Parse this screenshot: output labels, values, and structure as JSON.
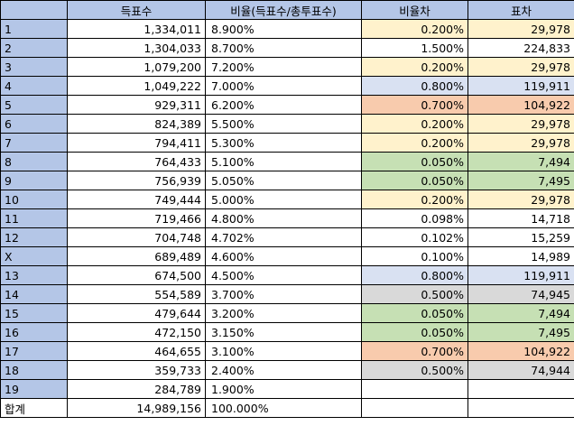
{
  "headers": [
    "",
    "득표수",
    "비율(득표수/총투표수)",
    "비율차",
    "표차"
  ],
  "colors": {
    "header": "#b4c6e7",
    "yellow": "#fff2cc",
    "blue": "#d9e1f2",
    "orange": "#f8cbad",
    "green": "#c6e0b4",
    "gray": "#d9d9d9"
  },
  "rows": [
    {
      "label": "1",
      "votes": "1,334,011",
      "ratio": "8.900%",
      "diff": "0.200%",
      "gap": "29,978",
      "color": "yellow"
    },
    {
      "label": "2",
      "votes": "1,304,033",
      "ratio": "8.700%",
      "diff": "1.500%",
      "gap": "224,833",
      "color": "none"
    },
    {
      "label": "3",
      "votes": "1,079,200",
      "ratio": "7.200%",
      "diff": "0.200%",
      "gap": "29,978",
      "color": "yellow"
    },
    {
      "label": "4",
      "votes": "1,049,222",
      "ratio": "7.000%",
      "diff": "0.800%",
      "gap": "119,911",
      "color": "blue"
    },
    {
      "label": "5",
      "votes": "929,311",
      "ratio": "6.200%",
      "diff": "0.700%",
      "gap": "104,922",
      "color": "orange"
    },
    {
      "label": "6",
      "votes": "824,389",
      "ratio": "5.500%",
      "diff": "0.200%",
      "gap": "29,978",
      "color": "yellow"
    },
    {
      "label": "7",
      "votes": "794,411",
      "ratio": "5.300%",
      "diff": "0.200%",
      "gap": "29,978",
      "color": "yellow"
    },
    {
      "label": "8",
      "votes": "764,433",
      "ratio": "5.100%",
      "diff": "0.050%",
      "gap": "7,494",
      "color": "green"
    },
    {
      "label": "9",
      "votes": "756,939",
      "ratio": "5.050%",
      "diff": "0.050%",
      "gap": "7,495",
      "color": "green"
    },
    {
      "label": "10",
      "votes": "749,444",
      "ratio": "5.000%",
      "diff": "0.200%",
      "gap": "29,978",
      "color": "yellow"
    },
    {
      "label": "11",
      "votes": "719,466",
      "ratio": "4.800%",
      "diff": "0.098%",
      "gap": "14,718",
      "color": "none"
    },
    {
      "label": "12",
      "votes": "704,748",
      "ratio": "4.702%",
      "diff": "0.102%",
      "gap": "15,259",
      "color": "none"
    },
    {
      "label": "X",
      "votes": "689,489",
      "ratio": "4.600%",
      "diff": "0.100%",
      "gap": "14,989",
      "color": "none"
    },
    {
      "label": "13",
      "votes": "674,500",
      "ratio": "4.500%",
      "diff": "0.800%",
      "gap": "119,911",
      "color": "blue"
    },
    {
      "label": "14",
      "votes": "554,589",
      "ratio": "3.700%",
      "diff": "0.500%",
      "gap": "74,945",
      "color": "gray"
    },
    {
      "label": "15",
      "votes": "479,644",
      "ratio": "3.200%",
      "diff": "0.050%",
      "gap": "7,494",
      "color": "green"
    },
    {
      "label": "16",
      "votes": "472,150",
      "ratio": "3.150%",
      "diff": "0.050%",
      "gap": "7,495",
      "color": "green"
    },
    {
      "label": "17",
      "votes": "464,655",
      "ratio": "3.100%",
      "diff": "0.700%",
      "gap": "104,922",
      "color": "orange"
    },
    {
      "label": "18",
      "votes": "359,733",
      "ratio": "2.400%",
      "diff": "0.500%",
      "gap": "74,944",
      "color": "gray"
    },
    {
      "label": "19",
      "votes": "284,789",
      "ratio": "1.900%",
      "diff": "",
      "gap": "",
      "color": "none"
    }
  ],
  "total": {
    "label": "합계",
    "votes": "14,989,156",
    "ratio": "100.000%"
  }
}
